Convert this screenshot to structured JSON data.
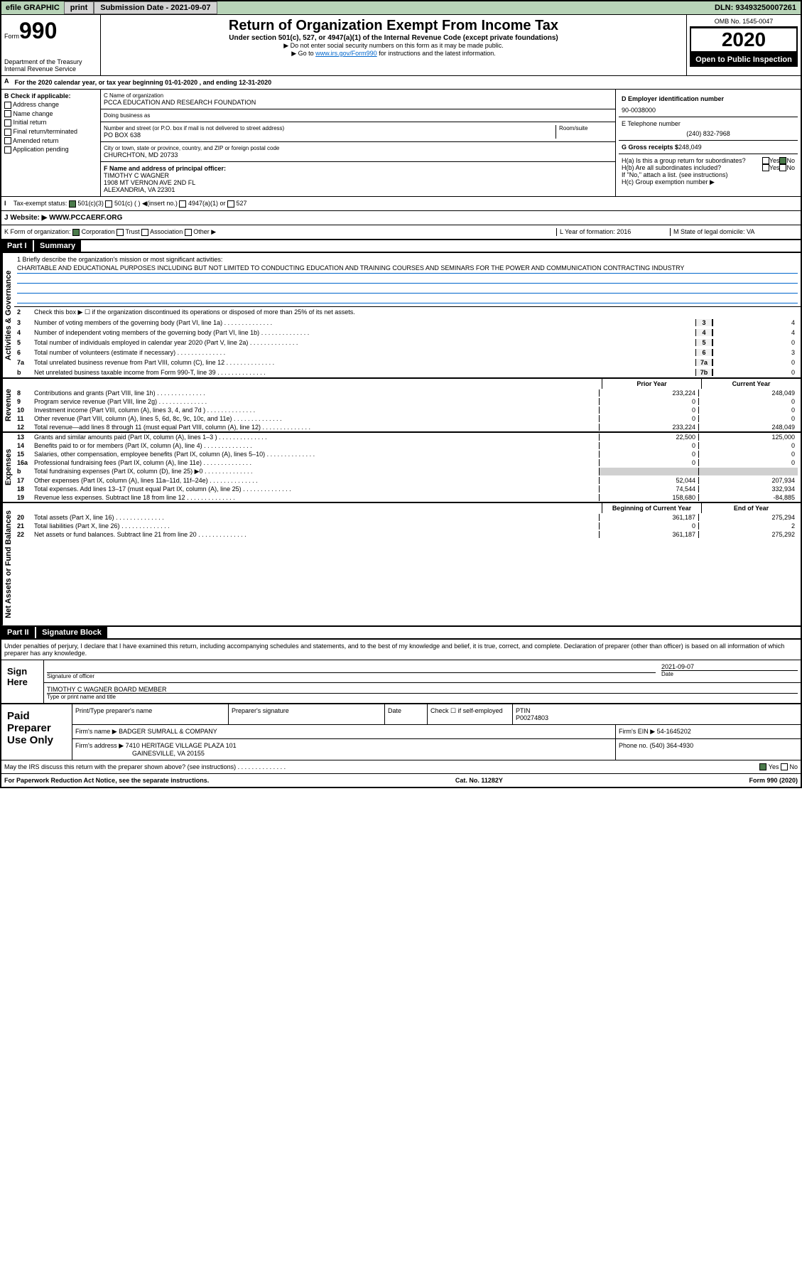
{
  "topbar": {
    "efile": "efile GRAPHIC",
    "print": "print",
    "sub_label": "Submission Date - 2021-09-07",
    "dln": "DLN: 93493250007261"
  },
  "form": {
    "prefix": "Form",
    "number": "990",
    "dept": "Department of the Treasury",
    "irs": "Internal Revenue Service"
  },
  "title": {
    "main": "Return of Organization Exempt From Income Tax",
    "sub": "Under section 501(c), 527, or 4947(a)(1) of the Internal Revenue Code (except private foundations)",
    "note1": "▶ Do not enter social security numbers on this form as it may be made public.",
    "note2_pre": "▶ Go to ",
    "note2_link": "www.irs.gov/Form990",
    "note2_post": " for instructions and the latest information."
  },
  "year_box": {
    "omb": "OMB No. 1545-0047",
    "year": "2020",
    "inspect": "Open to Public Inspection"
  },
  "section_a": "For the 2020 calendar year, or tax year beginning 01-01-2020   , and ending 12-31-2020",
  "check_b": {
    "header": "B Check if applicable:",
    "items": [
      "Address change",
      "Name change",
      "Initial return",
      "Final return/terminated",
      "Amended return",
      "Application pending"
    ]
  },
  "org": {
    "name_label": "C Name of organization",
    "name": "PCCA EDUCATION AND RESEARCH FOUNDATION",
    "dba_label": "Doing business as",
    "addr_label": "Number and street (or P.O. box if mail is not delivered to street address)",
    "room_label": "Room/suite",
    "addr": "PO BOX 638",
    "city_label": "City or town, state or province, country, and ZIP or foreign postal code",
    "city": "CHURCHTON, MD  20733",
    "officer_label": "F  Name and address of principal officer:",
    "officer_name": "TIMOTHY C WAGNER",
    "officer_addr1": "1908 MT VERNON AVE 2ND FL",
    "officer_addr2": "ALEXANDRIA, VA  22301"
  },
  "right": {
    "ein_label": "D Employer identification number",
    "ein": "90-0038000",
    "tel_label": "E Telephone number",
    "tel": "(240) 832-7968",
    "gross_label": "G Gross receipts $",
    "gross": "248,049",
    "ha": "H(a)  Is this a group return for subordinates?",
    "ha_yes": "Yes",
    "ha_no": "No",
    "hb": "H(b)  Are all subordinates included?",
    "hb_yes": "Yes",
    "hb_no": "No",
    "hb_note": "If \"No,\" attach a list. (see instructions)",
    "hc": "H(c)  Group exemption number ▶"
  },
  "tax_status": {
    "label": "Tax-exempt status:",
    "opt1": "501(c)(3)",
    "opt2": "501(c) (  ) ◀(insert no.)",
    "opt3": "4947(a)(1) or",
    "opt4": "527"
  },
  "website": {
    "label": "J   Website: ▶",
    "value": "WWW.PCCAERF.ORG"
  },
  "form_org": {
    "k": "K Form of organization:",
    "corp": "Corporation",
    "trust": "Trust",
    "assoc": "Association",
    "other": "Other ▶",
    "l": "L Year of formation: 2016",
    "m": "M State of legal domicile: VA"
  },
  "part1": {
    "header": "Part I",
    "title": "Summary",
    "line1": "1  Briefly describe the organization's mission or most significant activities:",
    "mission": "CHARITABLE AND EDUCATIONAL PURPOSES INCLUDING BUT NOT LIMITED TO CONDUCTING EDUCATION AND TRAINING COURSES AND SEMINARS FOR THE POWER AND COMMUNICATION CONTRACTING INDUSTRY",
    "line2": "Check this box ▶ ☐  if the organization discontinued its operations or disposed of more than 25% of its net assets.",
    "vert_activities": "Activities & Governance",
    "vert_revenue": "Revenue",
    "vert_expenses": "Expenses",
    "vert_netassets": "Net Assets or Fund Balances"
  },
  "gov_lines": [
    {
      "n": "3",
      "t": "Number of voting members of the governing body (Part VI, line 1a)",
      "box": "3",
      "v": "4"
    },
    {
      "n": "4",
      "t": "Number of independent voting members of the governing body (Part VI, line 1b)",
      "box": "4",
      "v": "4"
    },
    {
      "n": "5",
      "t": "Total number of individuals employed in calendar year 2020 (Part V, line 2a)",
      "box": "5",
      "v": "0"
    },
    {
      "n": "6",
      "t": "Total number of volunteers (estimate if necessary)",
      "box": "6",
      "v": "3"
    },
    {
      "n": "7a",
      "t": "Total unrelated business revenue from Part VIII, column (C), line 12",
      "box": "7a",
      "v": "0"
    },
    {
      "n": "b",
      "t": "Net unrelated business taxable income from Form 990-T, line 39",
      "box": "7b",
      "v": "0"
    }
  ],
  "fin_header": {
    "prior": "Prior Year",
    "current": "Current Year"
  },
  "rev_lines": [
    {
      "n": "8",
      "t": "Contributions and grants (Part VIII, line 1h)",
      "p": "233,224",
      "c": "248,049"
    },
    {
      "n": "9",
      "t": "Program service revenue (Part VIII, line 2g)",
      "p": "0",
      "c": "0"
    },
    {
      "n": "10",
      "t": "Investment income (Part VIII, column (A), lines 3, 4, and 7d )",
      "p": "0",
      "c": "0"
    },
    {
      "n": "11",
      "t": "Other revenue (Part VIII, column (A), lines 5, 6d, 8c, 9c, 10c, and 11e)",
      "p": "0",
      "c": "0"
    },
    {
      "n": "12",
      "t": "Total revenue—add lines 8 through 11 (must equal Part VIII, column (A), line 12)",
      "p": "233,224",
      "c": "248,049"
    }
  ],
  "exp_lines": [
    {
      "n": "13",
      "t": "Grants and similar amounts paid (Part IX, column (A), lines 1–3 )",
      "p": "22,500",
      "c": "125,000"
    },
    {
      "n": "14",
      "t": "Benefits paid to or for members (Part IX, column (A), line 4)",
      "p": "0",
      "c": "0"
    },
    {
      "n": "15",
      "t": "Salaries, other compensation, employee benefits (Part IX, column (A), lines 5–10)",
      "p": "0",
      "c": "0"
    },
    {
      "n": "16a",
      "t": "Professional fundraising fees (Part IX, column (A), line 11e)",
      "p": "0",
      "c": "0"
    },
    {
      "n": "b",
      "t": "Total fundraising expenses (Part IX, column (D), line 25) ▶0",
      "p": "",
      "c": ""
    },
    {
      "n": "17",
      "t": "Other expenses (Part IX, column (A), lines 11a–11d, 11f–24e)",
      "p": "52,044",
      "c": "207,934"
    },
    {
      "n": "18",
      "t": "Total expenses. Add lines 13–17 (must equal Part IX, column (A), line 25)",
      "p": "74,544",
      "c": "332,934"
    },
    {
      "n": "19",
      "t": "Revenue less expenses. Subtract line 18 from line 12",
      "p": "158,680",
      "c": "-84,885"
    }
  ],
  "net_header": {
    "begin": "Beginning of Current Year",
    "end": "End of Year"
  },
  "net_lines": [
    {
      "n": "20",
      "t": "Total assets (Part X, line 16)",
      "p": "361,187",
      "c": "275,294"
    },
    {
      "n": "21",
      "t": "Total liabilities (Part X, line 26)",
      "p": "0",
      "c": "2"
    },
    {
      "n": "22",
      "t": "Net assets or fund balances. Subtract line 21 from line 20",
      "p": "361,187",
      "c": "275,292"
    }
  ],
  "part2": {
    "header": "Part II",
    "title": "Signature Block",
    "decl": "Under penalties of perjury, I declare that I have examined this return, including accompanying schedules and statements, and to the best of my knowledge and belief, it is true, correct, and complete. Declaration of preparer (other than officer) is based on all information of which preparer has any knowledge."
  },
  "sign": {
    "here": "Sign Here",
    "sig_label": "Signature of officer",
    "date_label": "Date",
    "date": "2021-09-07",
    "name": "TIMOTHY C WAGNER  BOARD MEMBER",
    "name_label": "Type or print name and title"
  },
  "paid": {
    "label": "Paid Preparer Use Only",
    "h1": "Print/Type preparer's name",
    "h2": "Preparer's signature",
    "h3": "Date",
    "h4": "Check ☐  if self-employed",
    "h5_label": "PTIN",
    "h5": "P00274803",
    "firm_label": "Firm's name    ▶",
    "firm": "BADGER SUMRALL & COMPANY",
    "ein_label": "Firm's EIN ▶",
    "ein": "54-1645202",
    "addr_label": "Firm's address ▶",
    "addr1": "7410 HERITAGE VILLAGE PLAZA 101",
    "addr2": "GAINESVILLE, VA  20155",
    "phone_label": "Phone no.",
    "phone": "(540) 364-4930"
  },
  "discuss": {
    "q": "May the IRS discuss this return with the preparer shown above? (see instructions)",
    "yes": "Yes",
    "no": "No"
  },
  "footer": {
    "left": "For Paperwork Reduction Act Notice, see the separate instructions.",
    "mid": "Cat. No. 11282Y",
    "right": "Form 990 (2020)"
  },
  "colors": {
    "topbar_bg": "#b8d4b8",
    "link": "#0066cc",
    "black": "#000000",
    "check_green": "#4a7a4a",
    "shaded": "#d0d0d0"
  }
}
